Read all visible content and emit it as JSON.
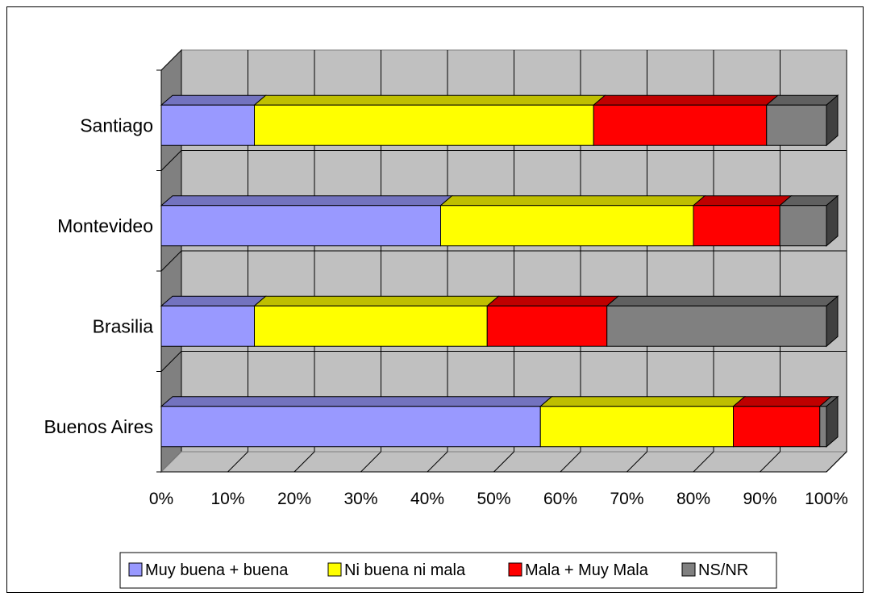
{
  "chart_data": {
    "type": "bar",
    "orientation": "horizontal",
    "stacked": "percent",
    "three_d": true,
    "categories": [
      "Santiago",
      "Montevideo",
      "Brasilia",
      "Buenos Aires"
    ],
    "series": [
      {
        "name": "Muy buena + buena",
        "color": "#9999FF",
        "values": [
          14,
          42,
          14,
          57
        ]
      },
      {
        "name": "Ni buena ni mala",
        "color": "#FFFF00",
        "values": [
          51,
          38,
          35,
          29
        ]
      },
      {
        "name": "Mala + Muy Mala",
        "color": "#FF0000",
        "values": [
          26,
          13,
          18,
          13
        ]
      },
      {
        "name": "NS/NR",
        "color": "#808080",
        "values": [
          9,
          7,
          33,
          1
        ]
      }
    ],
    "x_ticks": [
      "0%",
      "10%",
      "20%",
      "30%",
      "40%",
      "50%",
      "60%",
      "70%",
      "80%",
      "90%",
      "100%"
    ],
    "xlim": [
      0,
      100
    ],
    "grid": true,
    "legend_position": "bottom",
    "title": "",
    "xlabel": "",
    "ylabel": ""
  }
}
